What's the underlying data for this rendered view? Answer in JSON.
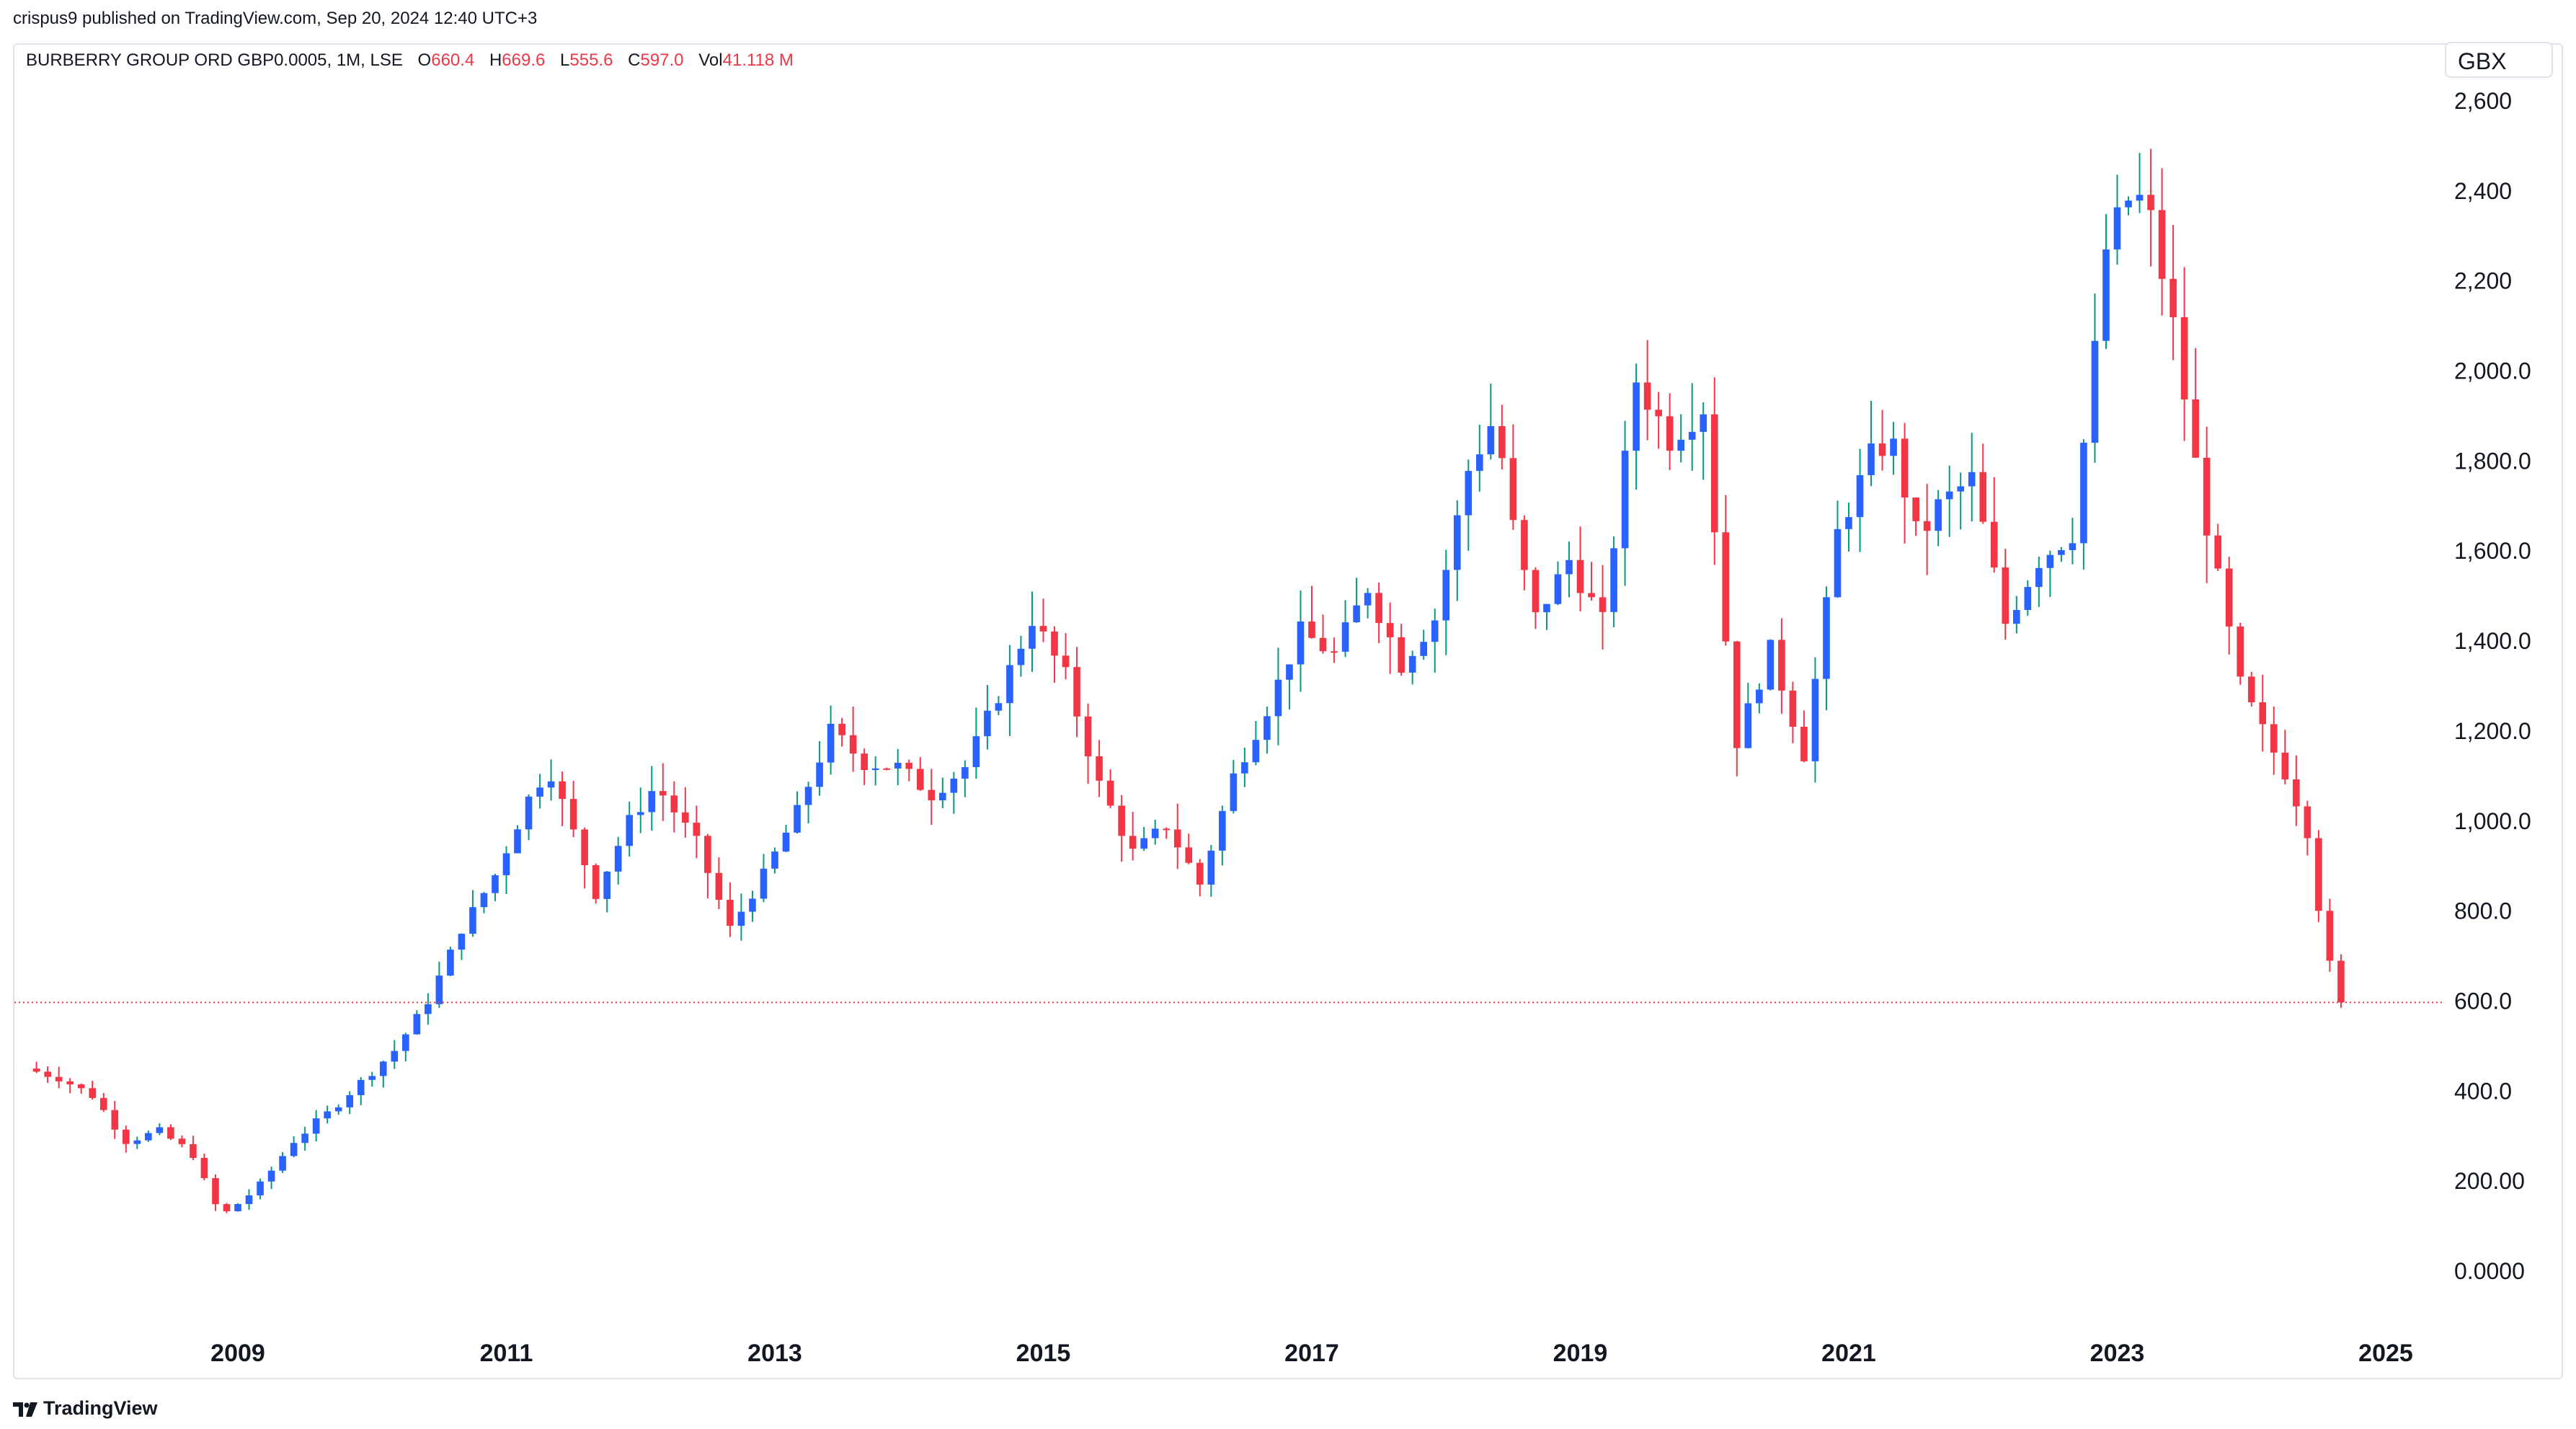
{
  "header": {
    "published": "crispus9 published on TradingView.com, Sep 20, 2024 12:40 UTC+3"
  },
  "legend": {
    "symbol": "BURBERRY GROUP ORD GBP0.0005, 1M, LSE",
    "open_label": "O",
    "open": "660.4",
    "high_label": "H",
    "high": "669.6",
    "low_label": "L",
    "low": "555.6",
    "close_label": "C",
    "close": "597.0",
    "vol_label": "Vol",
    "vol": "41.118 M"
  },
  "currency": "GBX",
  "footer": {
    "brand": "TradingView"
  },
  "colors": {
    "up": "#2962ff",
    "down": "#f23645",
    "neutral": "#089981",
    "price_line": "#f23645"
  },
  "chart_data": {
    "type": "candlestick",
    "interval": "1M",
    "y_axis": {
      "position": "right",
      "ticks": [
        "2,600",
        "2,400",
        "2,200",
        "2,000.0",
        "1,800.0",
        "1,600.0",
        "1,400.0",
        "1,200.0",
        "1,000.0",
        "800.0",
        "600.0",
        "400.0",
        "200.00",
        "0.0000"
      ],
      "tick_values": [
        2600,
        2400,
        2200,
        2000,
        1800,
        1600,
        1400,
        1200,
        1000,
        800,
        600,
        400,
        200,
        0
      ]
    },
    "x_axis": {
      "ticks": [
        "2009",
        "2011",
        "2013",
        "2015",
        "2017",
        "2019",
        "2021",
        "2023",
        "2025"
      ],
      "range": [
        2007.5,
        2025.5
      ]
    },
    "last_price": 597.0,
    "grid": false,
    "year_closes": [
      [
        2007.5,
        450
      ],
      [
        2007.75,
        430
      ],
      [
        2008.0,
        390
      ],
      [
        2008.25,
        290
      ],
      [
        2008.5,
        310
      ],
      [
        2008.75,
        260
      ],
      [
        2008.9,
        150
      ],
      [
        2009.0,
        130
      ],
      [
        2009.25,
        190
      ],
      [
        2009.5,
        290
      ],
      [
        2009.75,
        350
      ],
      [
        2010.0,
        420
      ],
      [
        2010.25,
        490
      ],
      [
        2010.5,
        600
      ],
      [
        2010.75,
        760
      ],
      [
        2011.0,
        880
      ],
      [
        2011.25,
        1050
      ],
      [
        2011.4,
        1120
      ],
      [
        2011.75,
        840
      ],
      [
        2012.0,
        1000
      ],
      [
        2012.2,
        1080
      ],
      [
        2012.5,
        950
      ],
      [
        2012.75,
        760
      ],
      [
        2013.0,
        880
      ],
      [
        2013.25,
        1020
      ],
      [
        2013.5,
        1200
      ],
      [
        2013.75,
        1130
      ],
      [
        2014.0,
        1120
      ],
      [
        2014.25,
        1060
      ],
      [
        2014.5,
        1120
      ],
      [
        2014.75,
        1280
      ],
      [
        2015.0,
        1450
      ],
      [
        2015.25,
        1320
      ],
      [
        2015.5,
        1080
      ],
      [
        2015.75,
        930
      ],
      [
        2016.0,
        990
      ],
      [
        2016.25,
        860
      ],
      [
        2016.5,
        1100
      ],
      [
        2016.75,
        1250
      ],
      [
        2017.0,
        1420
      ],
      [
        2017.25,
        1370
      ],
      [
        2017.5,
        1520
      ],
      [
        2017.75,
        1350
      ],
      [
        2018.0,
        1450
      ],
      [
        2018.25,
        1780
      ],
      [
        2018.45,
        1900
      ],
      [
        2018.6,
        1620
      ],
      [
        2018.75,
        1450
      ],
      [
        2019.0,
        1580
      ],
      [
        2019.25,
        1440
      ],
      [
        2019.5,
        1980
      ],
      [
        2019.75,
        1850
      ],
      [
        2020.0,
        1920
      ],
      [
        2020.15,
        1450
      ],
      [
        2020.25,
        1180
      ],
      [
        2020.5,
        1380
      ],
      [
        2020.75,
        1150
      ],
      [
        2021.0,
        1640
      ],
      [
        2021.25,
        1810
      ],
      [
        2021.4,
        1850
      ],
      [
        2021.6,
        1620
      ],
      [
        2021.75,
        1700
      ],
      [
        2022.0,
        1760
      ],
      [
        2022.25,
        1440
      ],
      [
        2022.5,
        1580
      ],
      [
        2022.75,
        1640
      ],
      [
        2022.9,
        2000
      ],
      [
        2023.0,
        2270
      ],
      [
        2023.15,
        2380
      ],
      [
        2023.3,
        2380
      ],
      [
        2023.5,
        2100
      ],
      [
        2023.65,
        1820
      ],
      [
        2023.8,
        1580
      ],
      [
        2024.0,
        1300
      ],
      [
        2024.2,
        1180
      ],
      [
        2024.35,
        1100
      ],
      [
        2024.5,
        980
      ],
      [
        2024.6,
        780
      ],
      [
        2024.72,
        597
      ]
    ]
  }
}
